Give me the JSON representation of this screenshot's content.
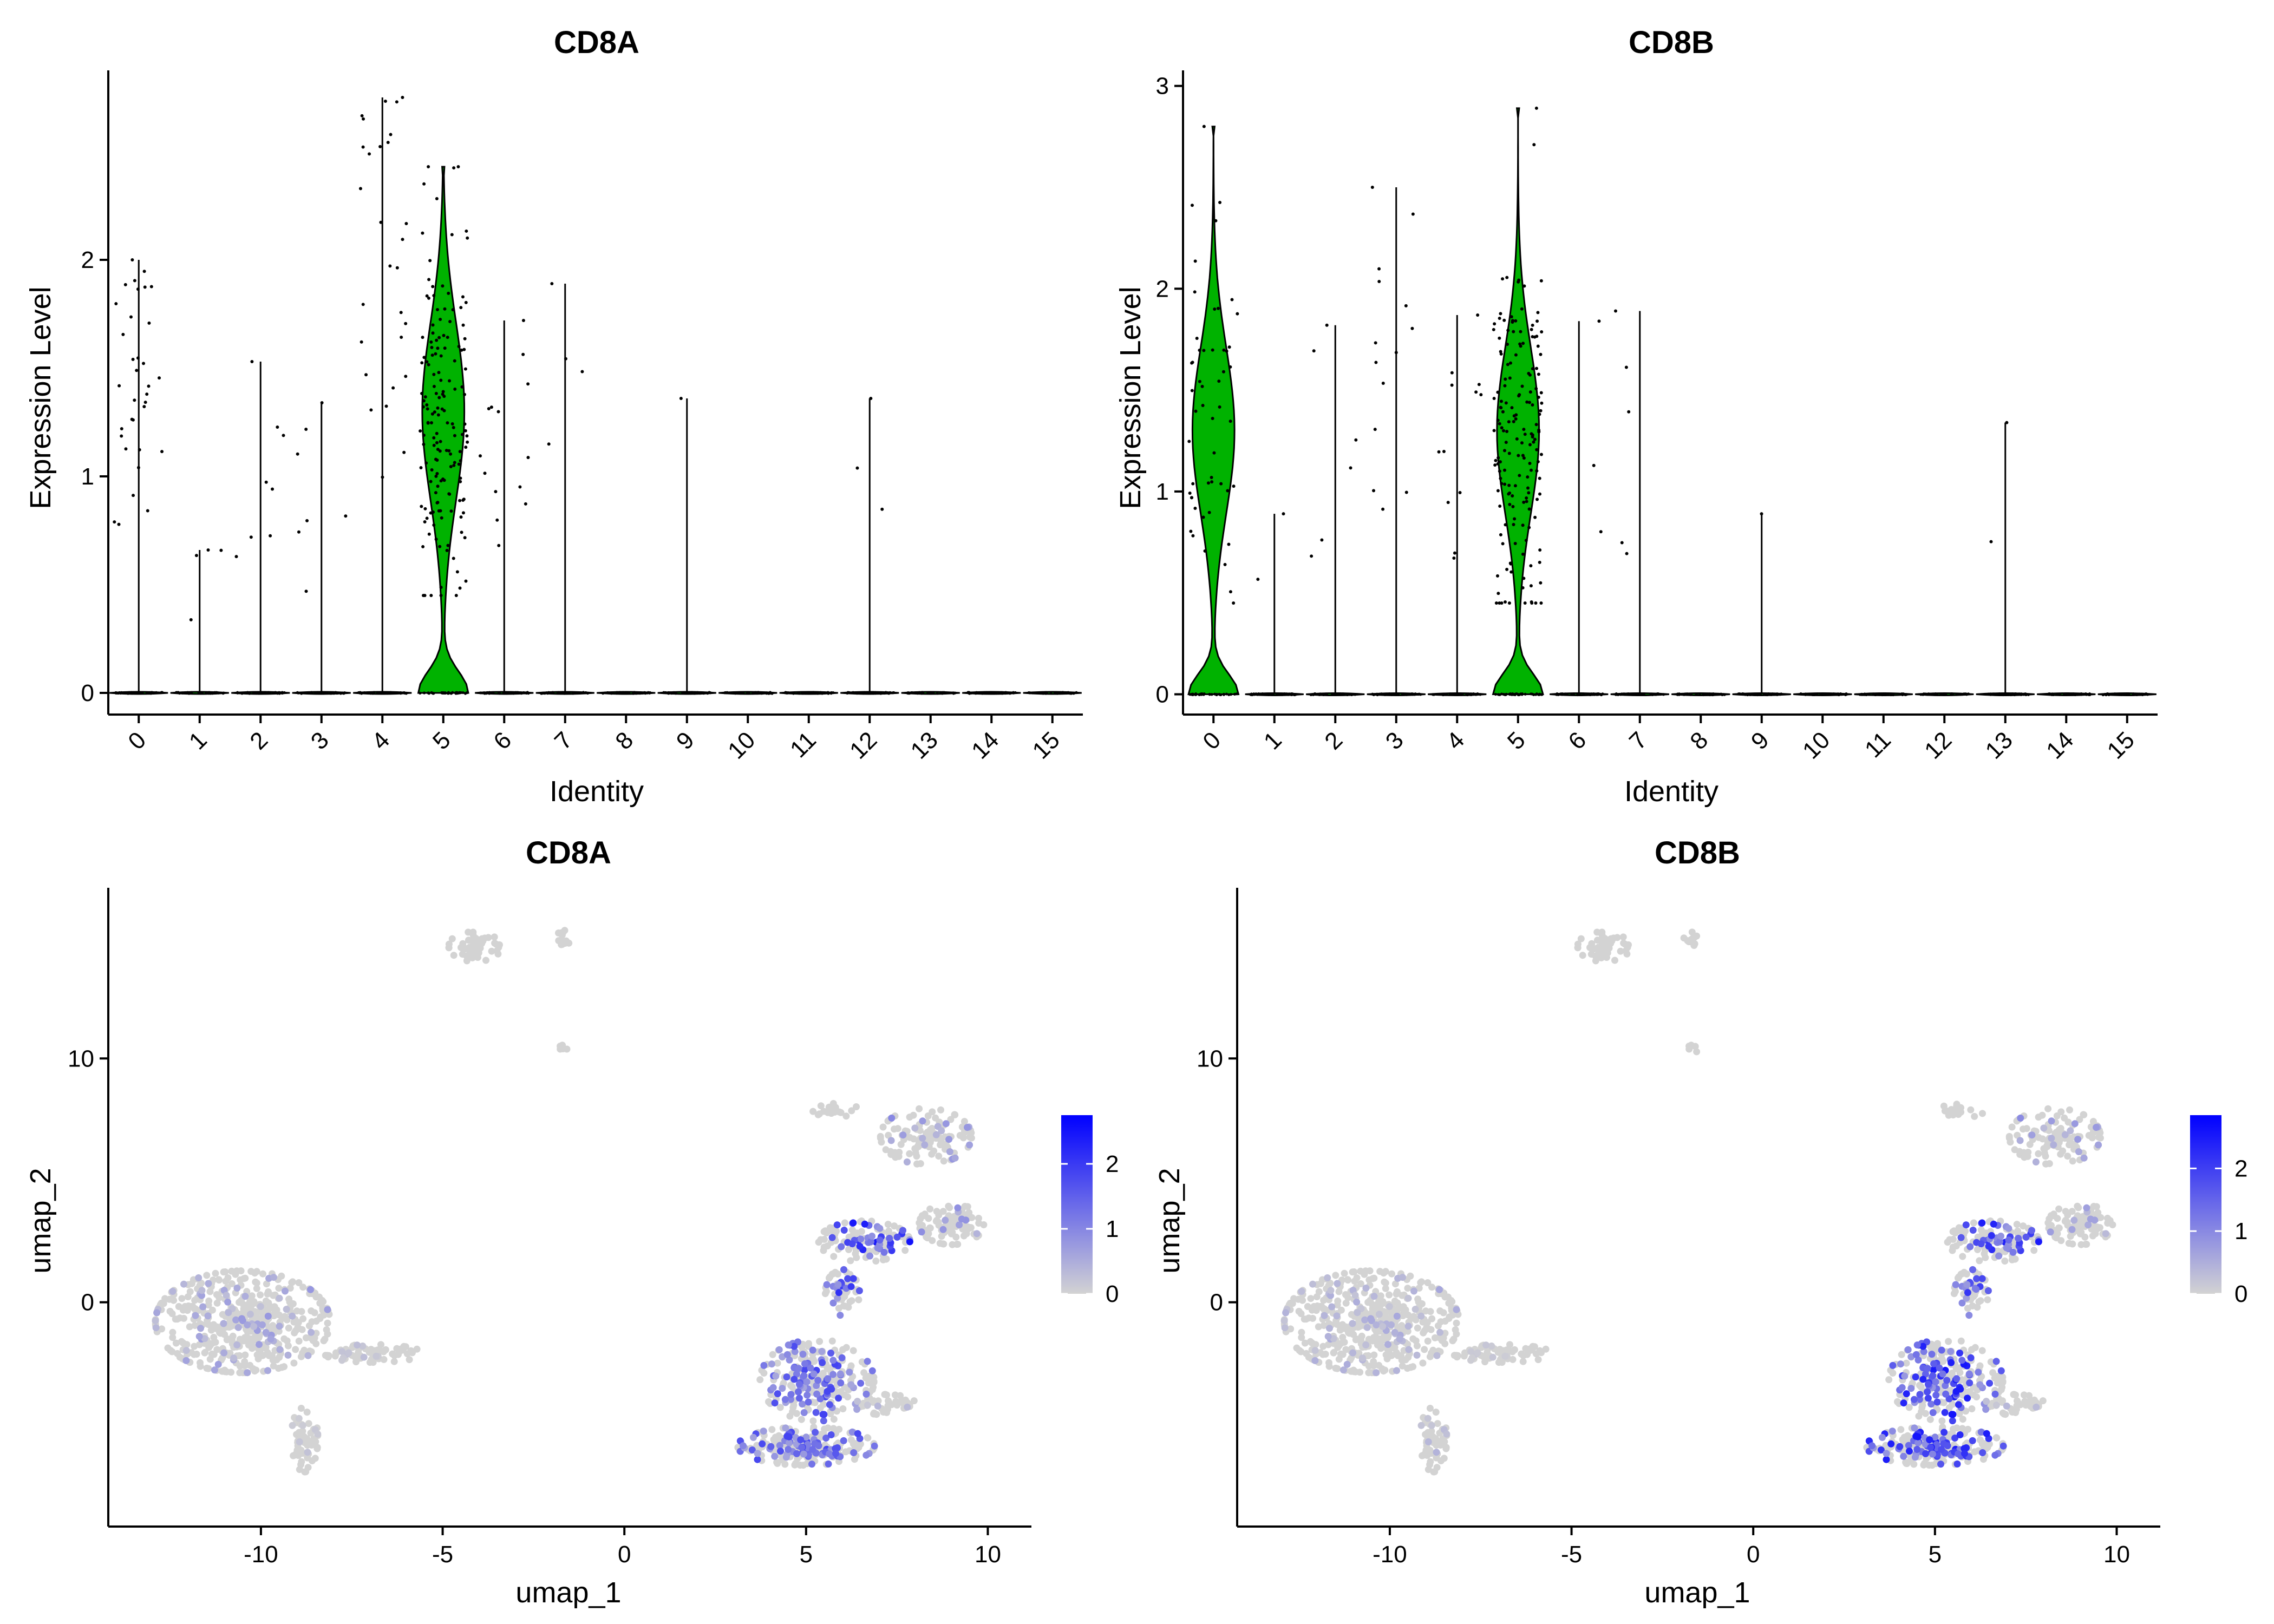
{
  "figure": {
    "panels": [
      {
        "type": "violin",
        "title": "CD8A",
        "xlabel": "Identity",
        "ylabel": "Expression Level"
      },
      {
        "type": "violin",
        "title": "CD8B",
        "xlabel": "Identity",
        "ylabel": "Expression Level"
      },
      {
        "type": "scatter",
        "title": "CD8A",
        "xlabel": "umap_1",
        "ylabel": "umap_2"
      },
      {
        "type": "scatter",
        "title": "CD8B",
        "xlabel": "umap_1",
        "ylabel": "umap_2"
      }
    ]
  },
  "chart_data": [
    {
      "type": "violin",
      "title": "CD8A",
      "xlabel": "Identity",
      "ylabel": "Expression Level",
      "categories": [
        "0",
        "1",
        "2",
        "3",
        "4",
        "5",
        "6",
        "7",
        "8",
        "9",
        "10",
        "11",
        "12",
        "13",
        "14",
        "15"
      ],
      "ylim": [
        -0.1,
        2.85
      ],
      "yticks": [
        0,
        1,
        2
      ],
      "fill_color": "#00b200",
      "max_values": [
        2.0,
        0.66,
        1.53,
        1.34,
        2.75,
        2.43,
        1.72,
        1.89,
        0,
        1.36,
        0,
        0,
        1.36,
        0,
        0,
        0
      ],
      "expressing_cells": [
        34,
        4,
        8,
        7,
        28,
        160,
        14,
        4,
        0,
        1,
        0,
        0,
        3,
        0,
        0,
        0
      ]
    },
    {
      "type": "violin",
      "title": "CD8B",
      "xlabel": "Identity",
      "ylabel": "Expression Level",
      "categories": [
        "0",
        "1",
        "2",
        "3",
        "4",
        "5",
        "6",
        "7",
        "8",
        "9",
        "10",
        "11",
        "12",
        "13",
        "14",
        "15"
      ],
      "ylim": [
        -0.1,
        3.05
      ],
      "yticks": [
        0,
        1,
        2,
        3
      ],
      "fill_color": "#00b200",
      "max_values": [
        2.8,
        0.89,
        1.82,
        2.5,
        1.87,
        2.89,
        1.84,
        1.89,
        0,
        0.89,
        0,
        0,
        0,
        1.34,
        0,
        0
      ],
      "expressing_cells": [
        52,
        2,
        6,
        14,
        12,
        170,
        3,
        5,
        0,
        1,
        0,
        0,
        0,
        2,
        0,
        0
      ]
    },
    {
      "type": "scatter",
      "title": "CD8A",
      "xlabel": "umap_1",
      "ylabel": "umap_2",
      "xlim": [
        -14.2,
        11.2
      ],
      "ylim": [
        -9.2,
        17.0
      ],
      "xticks": [
        -10,
        -5,
        0,
        5,
        10
      ],
      "yticks": [
        0,
        10
      ],
      "colorbar": {
        "min": 0,
        "max": 2.75,
        "ticks": [
          0,
          1,
          2
        ],
        "low_color": "#d3d3d3",
        "high_color": "#0000ff"
      },
      "clusters": [
        {
          "cx": -10.5,
          "cy": -0.8,
          "rx": 2.3,
          "ry": 2.0,
          "n": 520,
          "max_value": 0.8
        },
        {
          "cx": -6.9,
          "cy": -2.1,
          "rx": 1.3,
          "ry": 0.35,
          "n": 70,
          "max_value": 0.3
        },
        {
          "cx": -8.8,
          "cy": -5.6,
          "rx": 0.35,
          "ry": 1.3,
          "n": 60,
          "max_value": 0.3
        },
        {
          "cx": -4.1,
          "cy": 14.6,
          "rx": 0.7,
          "ry": 0.6,
          "n": 55,
          "max_value": 0
        },
        {
          "cx": -1.7,
          "cy": 14.9,
          "rx": 0.2,
          "ry": 0.35,
          "n": 12,
          "max_value": 0
        },
        {
          "cx": -1.65,
          "cy": 10.4,
          "rx": 0.15,
          "ry": 0.15,
          "n": 6,
          "max_value": 0
        },
        {
          "cx": 8.3,
          "cy": 6.8,
          "rx": 1.2,
          "ry": 1.1,
          "n": 130,
          "max_value": 1.0
        },
        {
          "cx": 5.8,
          "cy": 7.9,
          "rx": 0.6,
          "ry": 0.3,
          "n": 20,
          "max_value": 0
        },
        {
          "cx": 9.0,
          "cy": 3.2,
          "rx": 0.85,
          "ry": 0.8,
          "n": 100,
          "max_value": 1.0
        },
        {
          "cx": 6.6,
          "cy": 2.5,
          "rx": 1.2,
          "ry": 0.8,
          "n": 130,
          "max_value": 2.5
        },
        {
          "cx": 6.0,
          "cy": 0.4,
          "rx": 0.45,
          "ry": 0.9,
          "n": 55,
          "max_value": 2.2
        },
        {
          "cx": 5.3,
          "cy": -3.2,
          "rx": 1.5,
          "ry": 1.6,
          "n": 260,
          "max_value": 1.9
        },
        {
          "cx": 5.0,
          "cy": -5.9,
          "rx": 1.8,
          "ry": 0.75,
          "n": 220,
          "max_value": 1.9
        },
        {
          "cx": 7.2,
          "cy": -4.2,
          "rx": 0.8,
          "ry": 0.4,
          "n": 40,
          "max_value": 0.4
        }
      ]
    },
    {
      "type": "scatter",
      "title": "CD8B",
      "xlabel": "umap_1",
      "ylabel": "umap_2",
      "xlim": [
        -14.2,
        11.2
      ],
      "ylim": [
        -9.2,
        17.0
      ],
      "xticks": [
        -10,
        -5,
        0,
        5,
        10
      ],
      "yticks": [
        0,
        10
      ],
      "colorbar": {
        "min": 0,
        "max": 2.85,
        "ticks": [
          0,
          1,
          2
        ],
        "low_color": "#d3d3d3",
        "high_color": "#0000ff"
      },
      "clusters": [
        {
          "cx": -10.5,
          "cy": -0.8,
          "rx": 2.3,
          "ry": 2.0,
          "n": 520,
          "max_value": 0.6
        },
        {
          "cx": -6.9,
          "cy": -2.1,
          "rx": 1.3,
          "ry": 0.35,
          "n": 70,
          "max_value": 0.2
        },
        {
          "cx": -8.8,
          "cy": -5.6,
          "rx": 0.35,
          "ry": 1.3,
          "n": 60,
          "max_value": 0.6
        },
        {
          "cx": -4.1,
          "cy": 14.6,
          "rx": 0.7,
          "ry": 0.6,
          "n": 55,
          "max_value": 0
        },
        {
          "cx": -1.7,
          "cy": 14.9,
          "rx": 0.2,
          "ry": 0.35,
          "n": 12,
          "max_value": 1.0
        },
        {
          "cx": -1.65,
          "cy": 10.4,
          "rx": 0.15,
          "ry": 0.15,
          "n": 6,
          "max_value": 0
        },
        {
          "cx": 8.3,
          "cy": 6.8,
          "rx": 1.2,
          "ry": 1.1,
          "n": 130,
          "max_value": 1.0
        },
        {
          "cx": 5.8,
          "cy": 7.9,
          "rx": 0.6,
          "ry": 0.3,
          "n": 20,
          "max_value": 0
        },
        {
          "cx": 9.0,
          "cy": 3.2,
          "rx": 0.85,
          "ry": 0.8,
          "n": 100,
          "max_value": 0.8
        },
        {
          "cx": 6.6,
          "cy": 2.5,
          "rx": 1.2,
          "ry": 0.8,
          "n": 130,
          "max_value": 2.5
        },
        {
          "cx": 6.0,
          "cy": 0.4,
          "rx": 0.45,
          "ry": 0.9,
          "n": 55,
          "max_value": 2.2
        },
        {
          "cx": 5.3,
          "cy": -3.2,
          "rx": 1.5,
          "ry": 1.6,
          "n": 260,
          "max_value": 2.6
        },
        {
          "cx": 5.0,
          "cy": -5.9,
          "rx": 1.8,
          "ry": 0.75,
          "n": 220,
          "max_value": 2.6
        },
        {
          "cx": 7.2,
          "cy": -4.2,
          "rx": 0.8,
          "ry": 0.4,
          "n": 40,
          "max_value": 0.4
        }
      ]
    }
  ]
}
